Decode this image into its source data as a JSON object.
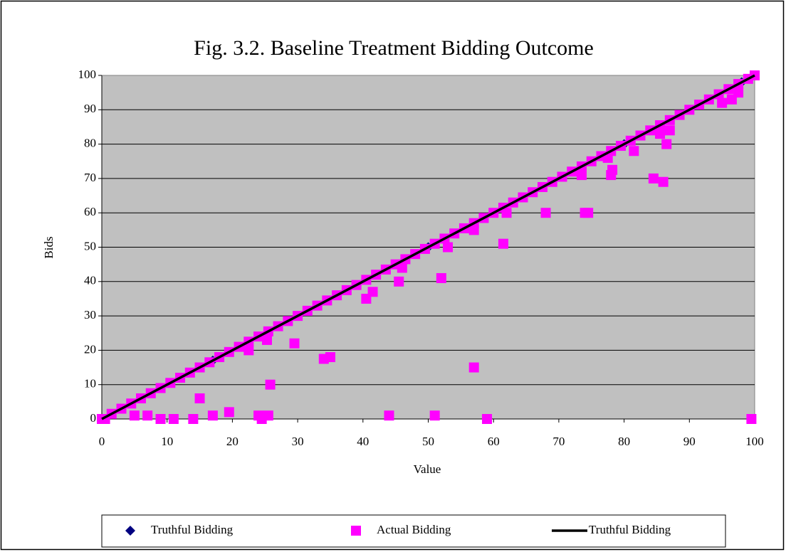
{
  "chart_data": {
    "type": "scatter",
    "title": "Fig. 3.2. Baseline Treatment Bidding Outcome",
    "x_label": "Value",
    "y_label": "Bids",
    "xlim": [
      0,
      100
    ],
    "ylim": [
      0,
      100
    ],
    "xticks": [
      0,
      10,
      20,
      30,
      40,
      50,
      60,
      70,
      80,
      90,
      100
    ],
    "yticks": [
      0,
      10,
      20,
      30,
      40,
      50,
      60,
      70,
      80,
      90,
      100
    ],
    "grid": true,
    "legend": "bottom",
    "series": [
      {
        "name": "Truthful Bidding",
        "type": "scatter",
        "marker": "diamond",
        "color": "#000080",
        "x": [
          0,
          17,
          30,
          50,
          80,
          96,
          98,
          100
        ],
        "values": [
          0,
          17,
          30,
          50,
          80,
          96,
          98,
          100
        ]
      },
      {
        "name": "Actual Bidding",
        "type": "scatter",
        "marker": "square",
        "color": "#ff00ff",
        "x": [
          0,
          1.5,
          3,
          4.5,
          6,
          7.5,
          9,
          10.5,
          12,
          13.5,
          15,
          16.5,
          18,
          19.5,
          21,
          22.5,
          24,
          25.5,
          27,
          28.5,
          30,
          31.5,
          33,
          34.5,
          36,
          37.5,
          39,
          40.5,
          42,
          43.5,
          45,
          46.5,
          48,
          49.5,
          51,
          52.5,
          54,
          55.5,
          57,
          58.5,
          60,
          61.5,
          63,
          64.5,
          66,
          67.5,
          69,
          70.5,
          72,
          73.5,
          75,
          76.5,
          78,
          79.5,
          81,
          82.5,
          84,
          85.5,
          87,
          88.5,
          90,
          91.5,
          93,
          94.5,
          96,
          97.5,
          99,
          0.5,
          5,
          7,
          9,
          11,
          14,
          15,
          17,
          19.5,
          22.5,
          24,
          24.5,
          25.3,
          25.5,
          25.8,
          29.5,
          34,
          35,
          40.5,
          41.5,
          44,
          45.5,
          46,
          51,
          52,
          53,
          57,
          57,
          59,
          61.5,
          62,
          68,
          73.5,
          74,
          74.5,
          78,
          78.2,
          77.5,
          81.5,
          84.5,
          85.5,
          86,
          86.5,
          87,
          95,
          96.5,
          97.5,
          99.5,
          100
        ],
        "values": [
          0,
          1.5,
          3,
          4.5,
          6,
          7.5,
          9,
          10.5,
          12,
          13.5,
          15,
          16.5,
          18,
          19.5,
          21,
          22.5,
          24,
          25.5,
          27,
          28.5,
          30,
          31.5,
          33,
          34.5,
          36,
          37.5,
          39,
          40.5,
          42,
          43.5,
          45,
          46.5,
          48,
          49.5,
          51,
          52.5,
          54,
          55.5,
          57,
          58.5,
          60,
          61.5,
          63,
          64.5,
          66,
          67.5,
          69,
          70.5,
          72,
          73.5,
          75,
          76.5,
          78,
          79.5,
          81,
          82.5,
          84,
          85.5,
          87,
          88.5,
          90,
          91.5,
          93,
          94.5,
          96,
          97.5,
          99,
          0,
          1,
          1,
          0,
          0,
          0,
          6,
          1,
          2,
          20,
          1,
          0,
          23,
          1,
          10,
          22,
          17.5,
          18,
          35,
          37,
          1,
          40,
          44,
          1,
          41,
          50,
          15,
          55,
          0,
          51,
          60,
          60,
          71,
          60,
          60,
          71,
          72.5,
          76,
          78,
          70,
          83,
          69,
          80,
          84,
          92,
          93,
          95,
          0,
          100
        ]
      },
      {
        "name": "Truthful Bidding",
        "type": "line",
        "color": "#000000",
        "x": [
          0,
          100
        ],
        "values": [
          0,
          100
        ]
      }
    ]
  }
}
